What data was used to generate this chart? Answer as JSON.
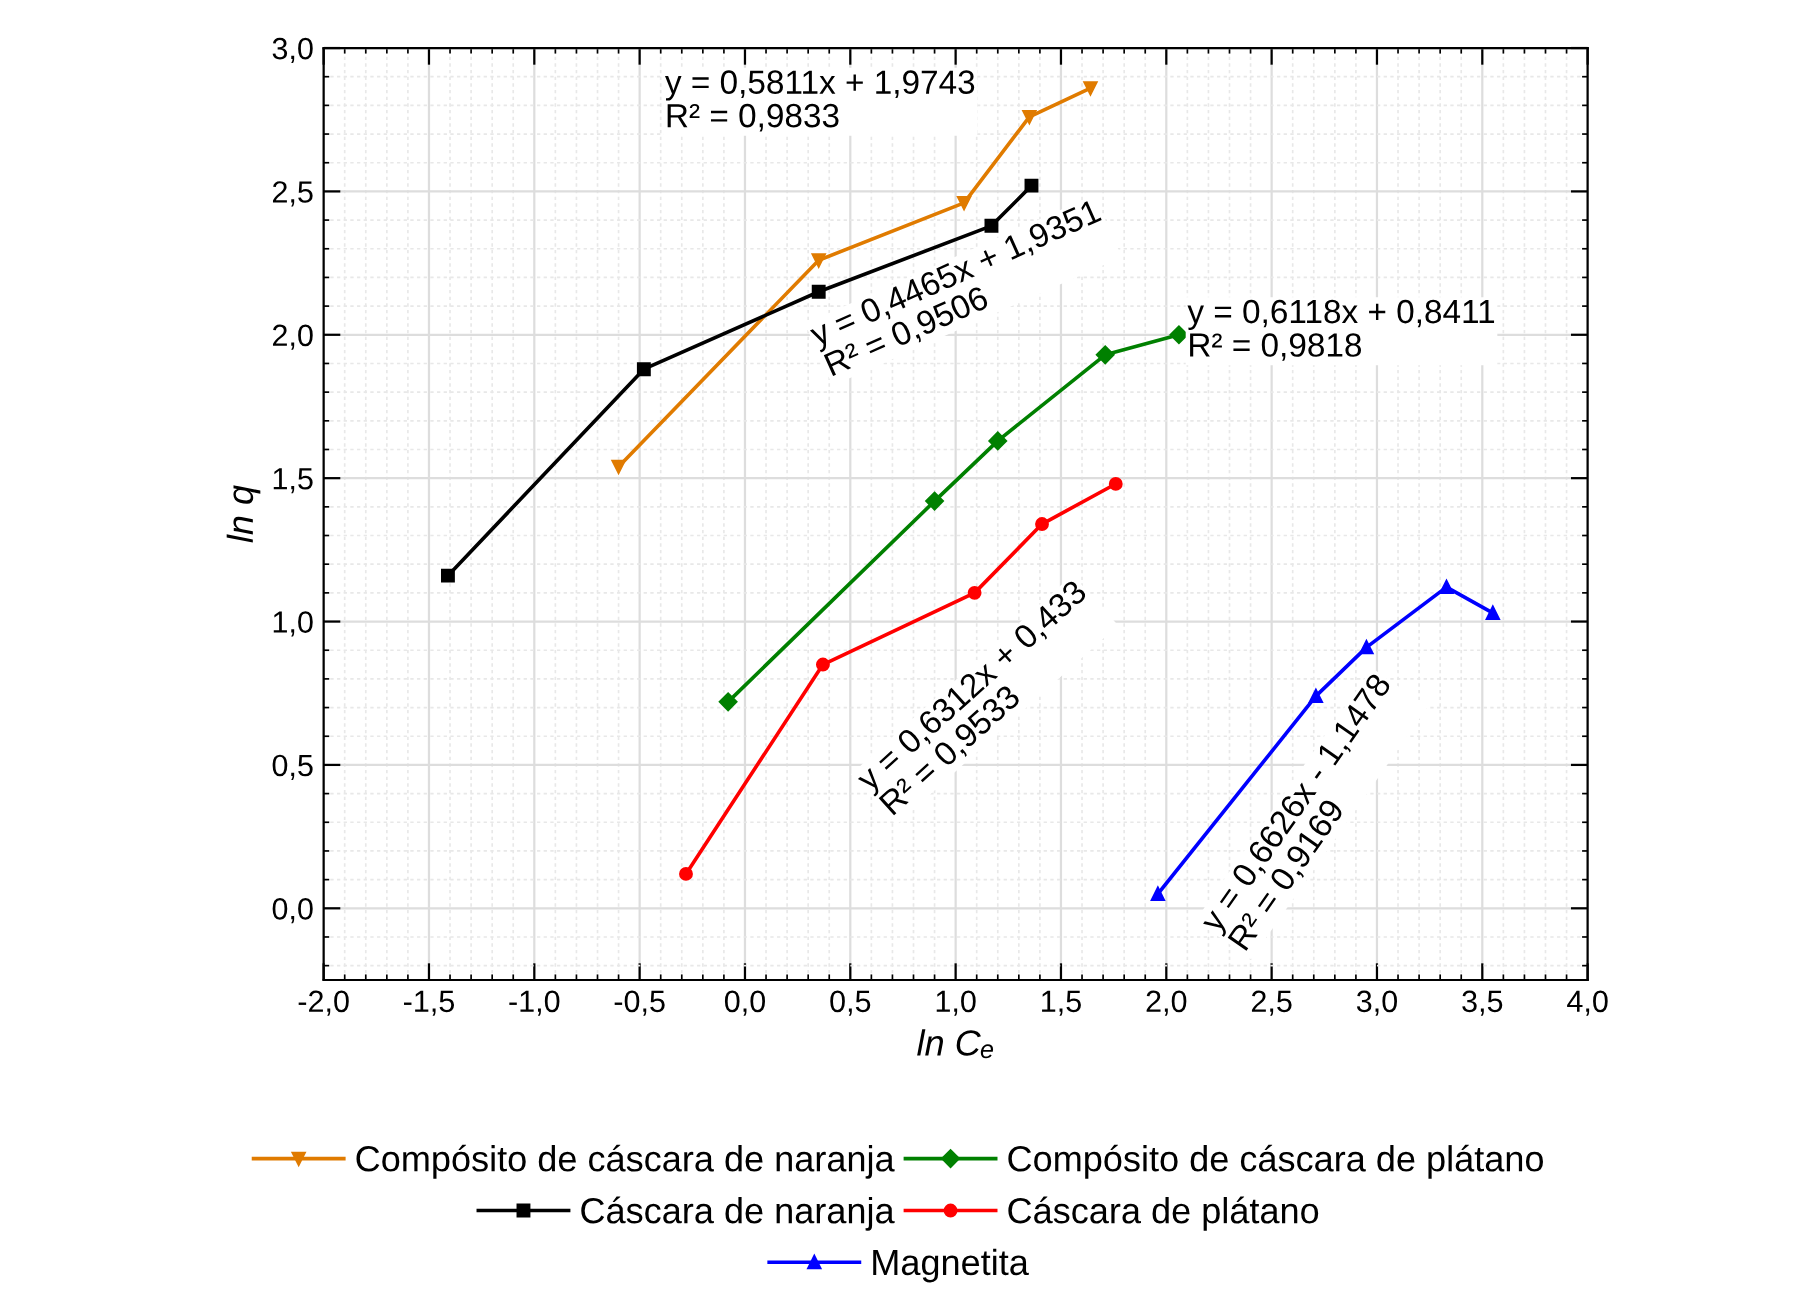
{
  "chart_data": {
    "type": "line",
    "xlabel": "ln Cₑ",
    "ylabel": "ln q",
    "xlim": [
      -2,
      4
    ],
    "ylim": [
      -0.25,
      3
    ],
    "xticks": [
      {
        "value": -2,
        "label": "-2,0"
      },
      {
        "value": -1.5,
        "label": "-1,5"
      },
      {
        "value": -1,
        "label": "-1,0"
      },
      {
        "value": -0.5,
        "label": "-0,5"
      },
      {
        "value": 0,
        "label": "0,0"
      },
      {
        "value": 0.5,
        "label": "0,5"
      },
      {
        "value": 1,
        "label": "1,0"
      },
      {
        "value": 1.5,
        "label": "1,5"
      },
      {
        "value": 2,
        "label": "2,0"
      },
      {
        "value": 2.5,
        "label": "2,5"
      },
      {
        "value": 3,
        "label": "3,0"
      },
      {
        "value": 3.5,
        "label": "3,5"
      },
      {
        "value": 4,
        "label": "4,0"
      }
    ],
    "yticks": [
      {
        "value": 0,
        "label": "0,0"
      },
      {
        "value": 0.5,
        "label": "0,5"
      },
      {
        "value": 1,
        "label": "1,0"
      },
      {
        "value": 1.5,
        "label": "1,5"
      },
      {
        "value": 2,
        "label": "2,0"
      },
      {
        "value": 2.5,
        "label": "2,5"
      },
      {
        "value": 3,
        "label": "3,0"
      }
    ],
    "grid": true,
    "legend": "bottom",
    "line_style": "solid",
    "series": [
      {
        "name": "Compósito de cáscara de naranja",
        "color": "#e07b00",
        "marker": "triangle_down",
        "x": [
          -0.6,
          0.35,
          1.04,
          1.35,
          1.64
        ],
        "values": [
          1.54,
          2.26,
          2.46,
          2.76,
          2.86
        ]
      },
      {
        "name": "Compósito de cáscara de plátano",
        "color": "#008000",
        "marker": "diamond",
        "x": [
          -0.08,
          0.9,
          1.2,
          1.71,
          2.06
        ],
        "values": [
          0.72,
          1.42,
          1.63,
          1.93,
          2.0
        ]
      },
      {
        "name": "Cáscara de naranja",
        "color": "#000000",
        "marker": "square",
        "x": [
          -1.41,
          -0.48,
          0.35,
          1.17,
          1.36
        ],
        "values": [
          1.16,
          1.88,
          2.15,
          2.38,
          2.52
        ]
      },
      {
        "name": "Cáscara de plátano",
        "color": "#ff0000",
        "marker": "circle",
        "x": [
          -0.28,
          0.37,
          1.09,
          1.41,
          1.76
        ],
        "values": [
          0.12,
          0.85,
          1.1,
          1.34,
          1.48
        ]
      },
      {
        "name": "Magnetita",
        "color": "#0000ff",
        "marker": "triangle",
        "x": [
          1.96,
          2.71,
          2.95,
          3.33,
          3.55
        ],
        "values": [
          0.05,
          0.74,
          0.91,
          1.12,
          1.03
        ]
      }
    ],
    "annotations": [
      "y = 0,5811x + 1,9743\nR² = 0,9833",
      "y = 0,6118x + 0,8411\nR² = 0,9818",
      "y = 0,4465x + 1,9351\nR² = 0,9506",
      "y = 0,6312x + 0,433\nR² = 0,9533",
      "y = 0,6626x - 1,1478\nR² = 0,9169"
    ]
  }
}
